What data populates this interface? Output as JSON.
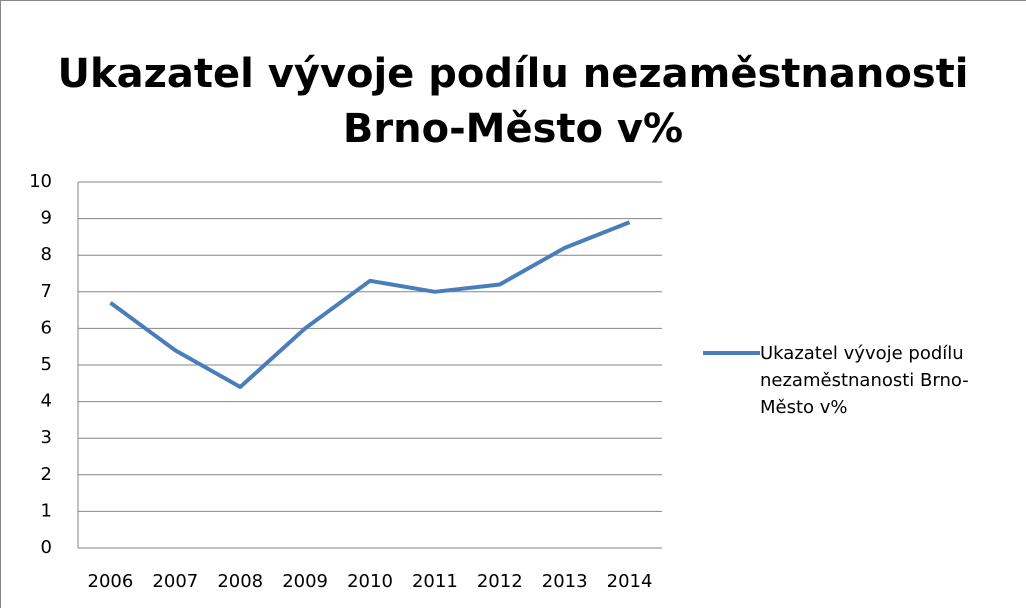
{
  "chart_data": {
    "type": "line",
    "title": [
      "Ukazatel vývoje podílu nezaměstnanosti",
      "Brno-Město v%"
    ],
    "categories": [
      "2006",
      "2007",
      "2008",
      "2009",
      "2010",
      "2011",
      "2012",
      "2013",
      "2014"
    ],
    "series": [
      {
        "name": "Ukazatel vývoje podílu nezaměstnanosti Brno-Město v%",
        "color": "#4a7ebb",
        "values": [
          6.7,
          5.4,
          4.4,
          6.0,
          7.3,
          7.0,
          7.2,
          8.2,
          8.9
        ]
      }
    ],
    "ylim": [
      0,
      10
    ],
    "yticks": [
      0,
      1,
      2,
      3,
      4,
      5,
      6,
      7,
      8,
      9,
      10
    ],
    "grid": true,
    "legend": "right"
  }
}
